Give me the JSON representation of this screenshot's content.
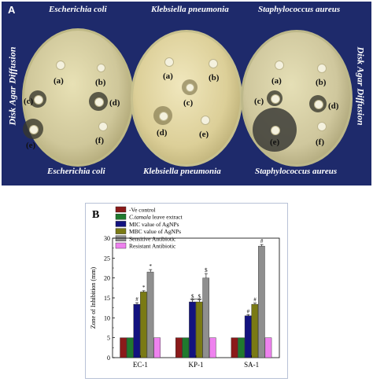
{
  "panel_a": {
    "label": "A",
    "side_label_left": "Disk Agar Diffusion",
    "side_label_right": "Disk Agar Diffusion",
    "top_labels": [
      "Escherichia coli",
      "Klebsiella pneumonia",
      "Staphylococcus aureus"
    ],
    "bottom_labels": [
      "Escherichia coli",
      "Klebsiella pneumonia",
      "Staphylococcus aureus"
    ],
    "disk_labels": [
      "(a)",
      "(b)",
      "(c)",
      "(d)",
      "(e)",
      "(f)"
    ]
  },
  "panel_b": {
    "label": "B"
  },
  "colors": {
    "background_a": "#1e2a6b",
    "ve_control": "#8b1a1a",
    "leaf_extract": "#1f7a2e",
    "mic": "#13137f",
    "mbc": "#7a7a14",
    "sensitive": "#8f8f8f",
    "resistant": "#ee82ee"
  },
  "chart_data": {
    "type": "bar",
    "categories": [
      "EC-1",
      "KP-1",
      "SA-1"
    ],
    "ylabel": "Zone of Inhibition (mm)",
    "xlabel": "",
    "ylim": [
      0,
      30
    ],
    "yticks": [
      "0",
      "5",
      "10",
      "15",
      "20",
      "25",
      "30"
    ],
    "series": [
      {
        "name": "-Ve control",
        "values": [
          5,
          5,
          5
        ],
        "errors": [
          0,
          0,
          0
        ],
        "markers": [
          "",
          "",
          ""
        ]
      },
      {
        "name": "C.tamala leave extract",
        "name_italic": "C.tamala",
        "name_rest": " leave extract",
        "values": [
          5,
          5,
          5
        ],
        "errors": [
          0,
          0,
          0
        ],
        "markers": [
          "",
          "",
          ""
        ]
      },
      {
        "name": "MIC value of AgNPs",
        "values": [
          13.4,
          14,
          10.5
        ],
        "errors": [
          0.4,
          0.5,
          0.3
        ],
        "markers": [
          "#",
          "$",
          "#"
        ]
      },
      {
        "name": "MBC value of AgNPs",
        "values": [
          16.5,
          14,
          13.4
        ],
        "errors": [
          0.3,
          0.5,
          0.3
        ],
        "markers": [
          "*",
          "$",
          "#"
        ]
      },
      {
        "name": "Sensitive Antibiotic",
        "values": [
          21.5,
          20,
          28
        ],
        "errors": [
          0.6,
          1.1,
          0.4
        ],
        "markers": [
          "*",
          "$",
          "#"
        ]
      },
      {
        "name": "Resistant Antibiotic",
        "values": [
          5,
          5,
          5
        ],
        "errors": [
          0,
          0,
          0
        ],
        "markers": [
          "",
          "",
          ""
        ]
      }
    ],
    "legend": "top-left"
  }
}
